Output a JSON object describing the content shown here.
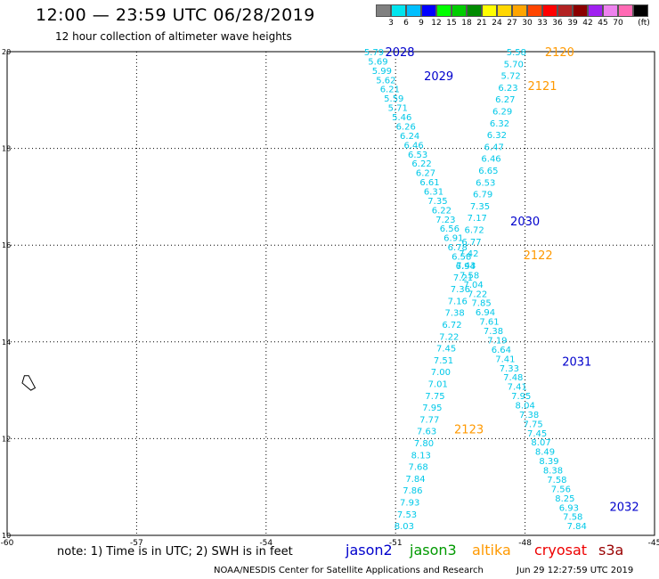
{
  "header": {
    "title": "12:00 — 23:59 UTC 06/28/2019",
    "subtitle": "12 hour collection of altimeter wave heights"
  },
  "colorbar": {
    "unit": "(ft)",
    "labels": [
      "3",
      "6",
      "9",
      "12",
      "15",
      "18",
      "21",
      "24",
      "27",
      "30",
      "33",
      "36",
      "39",
      "42",
      "45",
      "70"
    ],
    "colors": [
      "#808080",
      "#00e5ee",
      "#00bfff",
      "#0000ff",
      "#00ff00",
      "#00cd00",
      "#008b00",
      "#ffff00",
      "#ffd700",
      "#ffa500",
      "#ff4500",
      "#ff0000",
      "#b22222",
      "#8b0000",
      "#a020f0",
      "#ee82ee",
      "#ff69b4",
      "#000000"
    ]
  },
  "footer": {
    "note": "note:  1) Time is in UTC;  2) SWH is in feet",
    "credit": "NOAA/NESDIS Center for Satellite Applications and Research",
    "timestamp": "Jun 29 12:27:59 UTC 2019",
    "legend": [
      {
        "label": "jason2",
        "color": "#0000cc"
      },
      {
        "label": "jason3",
        "color": "#009900"
      },
      {
        "label": "altika",
        "color": "#ff9900"
      },
      {
        "label": "cryosat",
        "color": "#ee0000"
      },
      {
        "label": "s3a",
        "color": "#990000"
      }
    ]
  },
  "chart_data": {
    "type": "scatter",
    "xlim": [
      -60,
      -45
    ],
    "ylim": [
      10,
      20
    ],
    "xticks": [
      -60,
      -57,
      -54,
      -51,
      -48,
      -45
    ],
    "yticks": [
      10,
      12,
      14,
      16,
      18,
      20
    ],
    "grid": true,
    "label_color": "#00c8e8",
    "passes": [
      {
        "label": "2028",
        "color": "#0000cc",
        "lon": -50.9,
        "lat": 20.0
      },
      {
        "label": "2029",
        "color": "#0000cc",
        "lon": -50.0,
        "lat": 19.5
      },
      {
        "label": "2030",
        "color": "#0000cc",
        "lon": -48.0,
        "lat": 16.5
      },
      {
        "label": "2031",
        "color": "#0000cc",
        "lon": -46.8,
        "lat": 13.6
      },
      {
        "label": "2032",
        "color": "#0000cc",
        "lon": -45.7,
        "lat": 10.6
      },
      {
        "label": "2120",
        "color": "#ff9900",
        "lon": -47.2,
        "lat": 20.0
      },
      {
        "label": "2121",
        "color": "#ff9900",
        "lon": -47.6,
        "lat": 19.3
      },
      {
        "label": "2122",
        "color": "#ff9900",
        "lon": -47.7,
        "lat": 15.8
      },
      {
        "label": "2123",
        "color": "#ff9900",
        "lon": -49.3,
        "lat": 12.2
      }
    ],
    "tracks": [
      {
        "name": "descending",
        "start": [
          -51.5,
          20.0
        ],
        "end": [
          -46.8,
          10.2
        ],
        "values": [
          "5.79",
          "5.69",
          "5.99",
          "5.62",
          "6.21",
          "5.59",
          "5.71",
          "5.46",
          "6.26",
          "6.24",
          "6.46",
          "6.53",
          "6.22",
          "6.27",
          "6.61",
          "6.31",
          "7.35",
          "6.22",
          "7.23",
          "6.56",
          "6.91",
          "6.78",
          "6.58",
          "6.94",
          "7.58",
          "7.04",
          "7.22",
          "7.85",
          "6.94",
          "7.61",
          "7.38",
          "7.19",
          "6.64",
          "7.41",
          "7.33",
          "7.48",
          "7.41",
          "7.95",
          "8.04",
          "7.38",
          "7.75",
          "7.45",
          "8.07",
          "8.49",
          "8.39",
          "8.38",
          "7.58",
          "7.56",
          "8.25",
          "6.93",
          "7.58",
          "7.84"
        ]
      },
      {
        "name": "ascending",
        "start": [
          -48.2,
          20.0
        ],
        "end": [
          -50.8,
          10.2
        ],
        "values": [
          "5.58",
          "5.70",
          "5.72",
          "6.23",
          "6.27",
          "6.29",
          "6.32",
          "6.32",
          "6.47",
          "6.46",
          "6.65",
          "6.53",
          "6.79",
          "7.35",
          "7.17",
          "6.72",
          "6.77",
          "7.42",
          "7.43",
          "7.21",
          "7.36",
          "7.16",
          "7.38",
          "6.72",
          "7.22",
          "7.45",
          "7.51",
          "7.00",
          "7.01",
          "7.75",
          "7.95",
          "7.77",
          "7.63",
          "7.80",
          "8.13",
          "7.68",
          "7.84",
          "7.86",
          "7.93",
          "7.53",
          "8.03"
        ]
      }
    ],
    "land": [
      [
        -59.5,
        13.3
      ],
      [
        -59.35,
        13.05
      ],
      [
        -59.45,
        13.0
      ],
      [
        -59.65,
        13.15
      ],
      [
        -59.6,
        13.3
      ]
    ]
  }
}
